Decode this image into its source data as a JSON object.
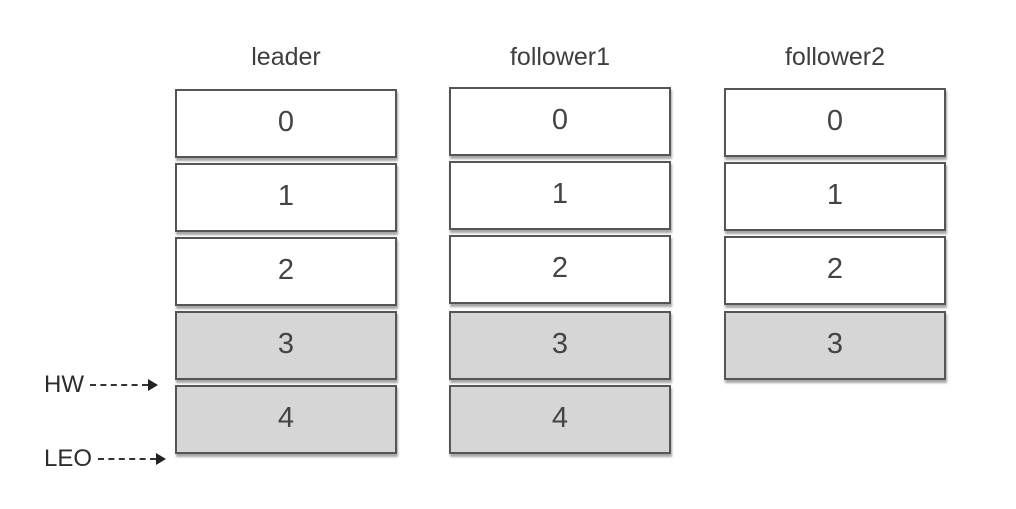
{
  "columns": [
    {
      "title": "leader",
      "cells": [
        "0",
        "1",
        "2",
        "3",
        "4"
      ]
    },
    {
      "title": "follower1",
      "cells": [
        "0",
        "1",
        "2",
        "3",
        "4"
      ]
    },
    {
      "title": "follower2",
      "cells": [
        "0",
        "1",
        "2",
        "3"
      ]
    }
  ],
  "markers": {
    "hw": "HW",
    "leo": "LEO"
  },
  "colors": {
    "committed_cell": "#ffffff",
    "uncommitted_cell": "#d6d6d6",
    "border": "#555555"
  }
}
